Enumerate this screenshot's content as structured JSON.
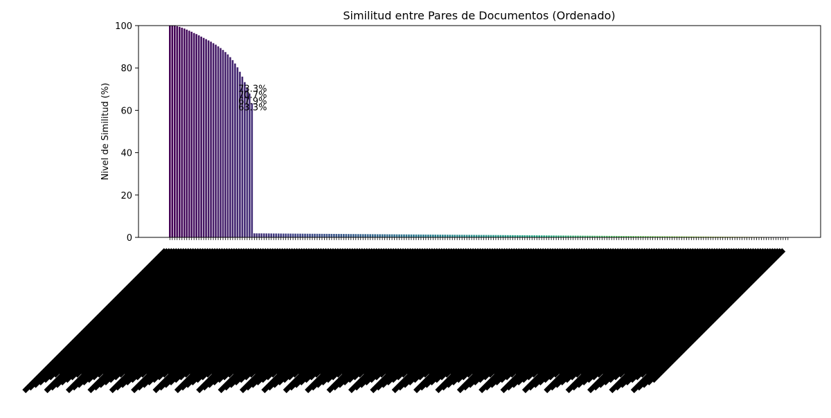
{
  "chart_data": {
    "type": "bar",
    "title": "Similitud entre Pares de Documentos (Ordenado)",
    "xlabel": "",
    "ylabel": "Nivel de Similitud (%)",
    "ylim": [
      0,
      100
    ],
    "yticks": [
      0,
      20,
      40,
      60,
      80,
      100
    ],
    "grid": false,
    "legend": "none",
    "bar_count": 257,
    "high_similarity_values": [
      100.0,
      100.0,
      99.9,
      99.7,
      99.4,
      99.0,
      98.6,
      98.1,
      97.6,
      97.1,
      96.5,
      96.0,
      95.4,
      94.8,
      94.2,
      93.6,
      93.0,
      92.4,
      91.7,
      91.0,
      90.2,
      89.4,
      88.5,
      87.5,
      86.4,
      85.1,
      83.7,
      82.1,
      80.3,
      78.2,
      75.9,
      73.3,
      70.7,
      67.9,
      63.3
    ],
    "low_similarity_start": 1.9,
    "low_similarity_end": 0.1,
    "visible_data_labels": [
      "73.3%",
      "70.7%",
      "67.9%",
      "63.3%"
    ],
    "colormap": [
      "#440154",
      "#414487",
      "#2a788e",
      "#22a884",
      "#7ad151",
      "#fde725"
    ]
  }
}
